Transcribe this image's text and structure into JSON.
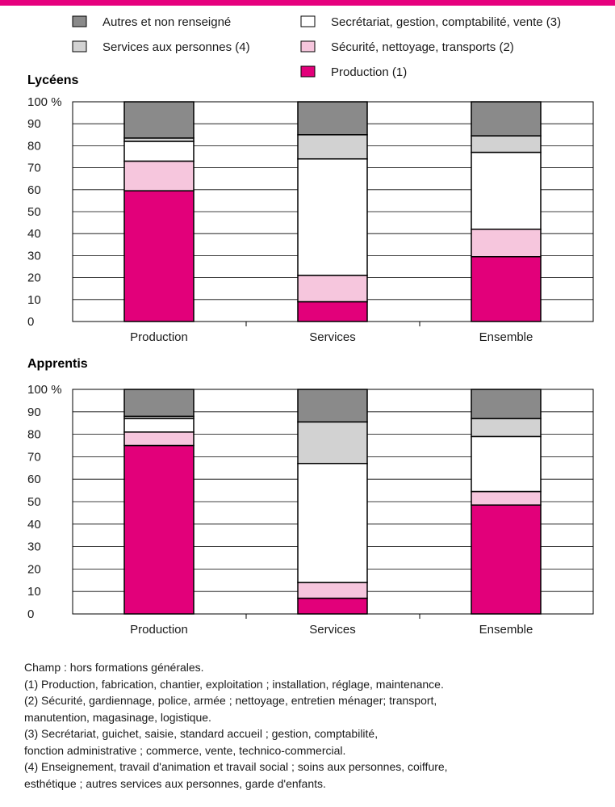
{
  "colors": {
    "accent": "#e6007e",
    "production": "#e2007a",
    "securite": "#f6c6dd",
    "secretariat": "#ffffff",
    "services_personnes": "#d2d2d2",
    "autres": "#8a8a8a"
  },
  "legend": [
    {
      "key": "autres",
      "label": "Autres et non renseigné"
    },
    {
      "key": "services_personnes",
      "label": "Services aux personnes (4)"
    },
    {
      "key": "secretariat",
      "label": "Secrétariat, gestion, comptabilité, vente (3)"
    },
    {
      "key": "securite",
      "label": "Sécurité, nettoyage, transports (2)"
    },
    {
      "key": "production",
      "label": "Production (1)"
    }
  ],
  "chart_data": [
    {
      "type": "bar",
      "stacked": true,
      "title": "Lycéens",
      "categories": [
        "Production",
        "Services",
        "Ensemble"
      ],
      "ylim": [
        0,
        100
      ],
      "yticks": [
        "0",
        "10",
        "20",
        "30",
        "40",
        "50",
        "60",
        "70",
        "80",
        "90",
        "100 %"
      ],
      "series": [
        {
          "key": "production",
          "name": "Production (1)",
          "values": [
            59.5,
            9,
            29.5
          ]
        },
        {
          "key": "securite",
          "name": "Sécurité, nettoyage, transports (2)",
          "values": [
            13.5,
            12,
            12.5
          ]
        },
        {
          "key": "secretariat",
          "name": "Secrétariat, gestion, comptabilité, vente (3)",
          "values": [
            9,
            53,
            35
          ]
        },
        {
          "key": "services_personnes",
          "name": "Services aux personnes (4)",
          "values": [
            1.5,
            11,
            7.5
          ]
        },
        {
          "key": "autres",
          "name": "Autres et non renseigné",
          "values": [
            16.5,
            15,
            15.5
          ]
        }
      ]
    },
    {
      "type": "bar",
      "stacked": true,
      "title": "Apprentis",
      "categories": [
        "Production",
        "Services",
        "Ensemble"
      ],
      "ylim": [
        0,
        100
      ],
      "yticks": [
        "0",
        "10",
        "20",
        "30",
        "40",
        "50",
        "60",
        "70",
        "80",
        "90",
        "100 %"
      ],
      "series": [
        {
          "key": "production",
          "name": "Production (1)",
          "values": [
            75,
            7,
            48.5
          ]
        },
        {
          "key": "securite",
          "name": "Sécurité, nettoyage, transports (2)",
          "values": [
            6,
            7,
            6
          ]
        },
        {
          "key": "secretariat",
          "name": "Secrétariat, gestion, comptabilité, vente (3)",
          "values": [
            6,
            53,
            24.5
          ]
        },
        {
          "key": "services_personnes",
          "name": "Services aux personnes (4)",
          "values": [
            1,
            18.5,
            8
          ]
        },
        {
          "key": "autres",
          "name": "Autres et non renseigné",
          "values": [
            12,
            14.5,
            13
          ]
        }
      ]
    }
  ],
  "notes": [
    "Champ : hors formations générales.",
    "(1) Production, fabrication, chantier, exploitation ; installation, réglage, maintenance.",
    "(2) Sécurité, gardiennage, police, armée ; nettoyage, entretien ménager; transport,",
    "manutention, magasinage, logistique.",
    "(3) Secrétariat, guichet, saisie, standard accueil ; gestion, comptabilité,",
    "fonction administrative ; commerce, vente, technico-commercial.",
    "(4) Enseignement, travail d'animation et travail social ; soins aux personnes, coiffure,",
    "esthétique ; autres services aux personnes, garde d'enfants."
  ]
}
